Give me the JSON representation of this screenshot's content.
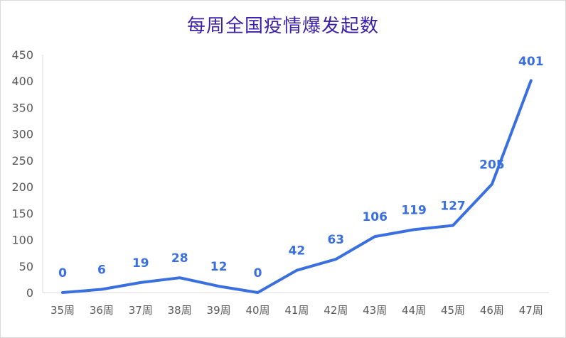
{
  "chart_data": {
    "type": "line",
    "title": "每周全国疫情爆发起数",
    "categories": [
      "35周",
      "36周",
      "37周",
      "38周",
      "39周",
      "40周",
      "41周",
      "42周",
      "43周",
      "44周",
      "45周",
      "46周",
      "47周"
    ],
    "values": [
      0,
      6,
      19,
      28,
      12,
      0,
      42,
      63,
      106,
      119,
      127,
      205,
      401
    ],
    "data_labels": [
      "0",
      "6",
      "19",
      "28",
      "12",
      "0",
      "42",
      "63",
      "106",
      "119",
      "127",
      "205",
      "401"
    ],
    "yticks": [
      "0",
      "50",
      "100",
      "150",
      "200",
      "250",
      "300",
      "350",
      "400",
      "450"
    ],
    "ylim": [
      0,
      450
    ],
    "grid": false,
    "legend": "none",
    "line_color": "#3a6fe0",
    "title_color": "#3b20a8"
  }
}
